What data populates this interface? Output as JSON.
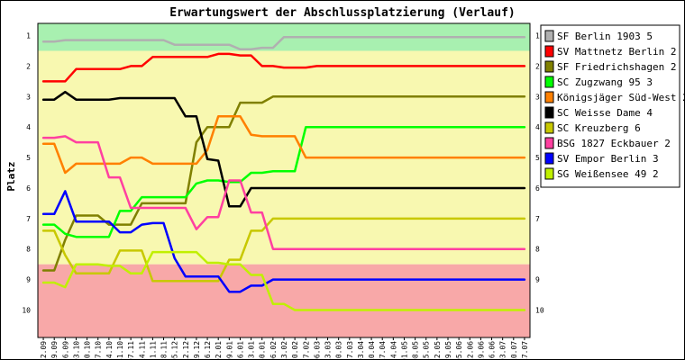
{
  "chart_data": {
    "type": "line",
    "title": "Erwartungswert der Abschlussplatzierung (Verlauf)",
    "ylabel": "Platz",
    "xlabel": "",
    "ylim": [
      0.6,
      10.9
    ],
    "y_inverted": true,
    "yticks": [
      "1",
      "2",
      "3",
      "4",
      "5",
      "6",
      "7",
      "8",
      "9",
      "10"
    ],
    "grid": false,
    "legend_position": "right",
    "zones": [
      {
        "from": 0.6,
        "to": 1.5,
        "color": "#a8f0b0"
      },
      {
        "from": 1.5,
        "to": 8.5,
        "color": "#f8f8b0"
      },
      {
        "from": 8.5,
        "to": 10.9,
        "color": "#f8a8a8"
      }
    ],
    "x": [
      "12.09",
      "19.09",
      "26.09",
      "03.10",
      "10.10",
      "17.10",
      "24.10",
      "31.10",
      "07.11",
      "14.11",
      "21.11",
      "28.11",
      "05.12",
      "12.12",
      "19.12",
      "26.12",
      "02.01",
      "09.01",
      "16.01",
      "23.01",
      "30.01",
      "06.02",
      "13.02",
      "20.02",
      "27.02",
      "06.03",
      "13.03",
      "20.03",
      "27.03",
      "03.04",
      "10.04",
      "17.04",
      "24.04",
      "01.05",
      "08.05",
      "15.05",
      "22.05",
      "29.05",
      "05.06",
      "12.06",
      "19.06",
      "26.06",
      "03.07",
      "10.07",
      "17.07"
    ],
    "series": [
      {
        "name": "SF Berlin 1903 5",
        "color": "#b0b0b0",
        "values": [
          1.2,
          1.2,
          1.15,
          1.15,
          1.15,
          1.15,
          1.15,
          1.15,
          1.15,
          1.15,
          1.15,
          1.15,
          1.3,
          1.3,
          1.3,
          1.3,
          1.3,
          1.3,
          1.45,
          1.45,
          1.4,
          1.4,
          1.05,
          1.05,
          1.05,
          1.05,
          1.05,
          1.05,
          1.05,
          1.05,
          1.05,
          1.05,
          1.05,
          1.05,
          1.05,
          1.05,
          1.05,
          1.05,
          1.05,
          1.05,
          1.05,
          1.05,
          1.05,
          1.05,
          1.05
        ]
      },
      {
        "name": "SV Mattnetz Berlin 2",
        "color": "#ff0000",
        "values": [
          2.5,
          2.5,
          2.5,
          2.1,
          2.1,
          2.1,
          2.1,
          2.1,
          2.0,
          2.0,
          1.7,
          1.7,
          1.7,
          1.7,
          1.7,
          1.7,
          1.6,
          1.6,
          1.65,
          1.65,
          2.0,
          2.0,
          2.05,
          2.05,
          2.05,
          2.0,
          2.0,
          2.0,
          2.0,
          2.0,
          2.0,
          2.0,
          2.0,
          2.0,
          2.0,
          2.0,
          2.0,
          2.0,
          2.0,
          2.0,
          2.0,
          2.0,
          2.0,
          2.0,
          2.0
        ]
      },
      {
        "name": "SF Friedrichshagen 2",
        "color": "#808000",
        "values": [
          8.7,
          8.7,
          7.7,
          6.9,
          6.9,
          6.9,
          7.2,
          7.2,
          7.2,
          6.5,
          6.5,
          6.5,
          6.5,
          6.5,
          4.5,
          4.0,
          4.0,
          4.0,
          3.2,
          3.2,
          3.2,
          3.0,
          3.0,
          3.0,
          3.0,
          3.0,
          3.0,
          3.0,
          3.0,
          3.0,
          3.0,
          3.0,
          3.0,
          3.0,
          3.0,
          3.0,
          3.0,
          3.0,
          3.0,
          3.0,
          3.0,
          3.0,
          3.0,
          3.0,
          3.0
        ]
      },
      {
        "name": "SC Zugzwang 95 3",
        "color": "#00ff00",
        "values": [
          7.2,
          7.2,
          7.5,
          7.6,
          7.6,
          7.6,
          7.6,
          6.75,
          6.75,
          6.3,
          6.3,
          6.3,
          6.3,
          6.3,
          5.85,
          5.75,
          5.75,
          5.8,
          5.8,
          5.5,
          5.5,
          5.45,
          5.45,
          5.45,
          4.0,
          4.0,
          4.0,
          4.0,
          4.0,
          4.0,
          4.0,
          4.0,
          4.0,
          4.0,
          4.0,
          4.0,
          4.0,
          4.0,
          4.0,
          4.0,
          4.0,
          4.0,
          4.0,
          4.0,
          4.0
        ]
      },
      {
        "name": "Königsjäger Süd-West 2",
        "color": "#ff8000",
        "values": [
          4.55,
          4.55,
          5.5,
          5.2,
          5.2,
          5.2,
          5.2,
          5.2,
          5.0,
          5.0,
          5.2,
          5.2,
          5.2,
          5.2,
          5.2,
          4.75,
          3.65,
          3.65,
          3.65,
          4.25,
          4.3,
          4.3,
          4.3,
          4.3,
          5.0,
          5.0,
          5.0,
          5.0,
          5.0,
          5.0,
          5.0,
          5.0,
          5.0,
          5.0,
          5.0,
          5.0,
          5.0,
          5.0,
          5.0,
          5.0,
          5.0,
          5.0,
          5.0,
          5.0,
          5.0
        ]
      },
      {
        "name": "SC Weisse Dame 4",
        "color": "#000000",
        "values": [
          3.1,
          3.1,
          2.85,
          3.1,
          3.1,
          3.1,
          3.1,
          3.05,
          3.05,
          3.05,
          3.05,
          3.05,
          3.05,
          3.65,
          3.65,
          5.05,
          5.1,
          6.6,
          6.6,
          6.0,
          6.0,
          6.0,
          6.0,
          6.0,
          6.0,
          6.0,
          6.0,
          6.0,
          6.0,
          6.0,
          6.0,
          6.0,
          6.0,
          6.0,
          6.0,
          6.0,
          6.0,
          6.0,
          6.0,
          6.0,
          6.0,
          6.0,
          6.0,
          6.0,
          6.0
        ]
      },
      {
        "name": "SC Kreuzberg 6",
        "color": "#c8c800",
        "values": [
          7.4,
          7.4,
          8.2,
          8.8,
          8.8,
          8.8,
          8.8,
          8.05,
          8.05,
          8.05,
          9.05,
          9.05,
          9.05,
          9.05,
          9.05,
          9.05,
          9.05,
          8.35,
          8.35,
          7.4,
          7.4,
          7.0,
          7.0,
          7.0,
          7.0,
          7.0,
          7.0,
          7.0,
          7.0,
          7.0,
          7.0,
          7.0,
          7.0,
          7.0,
          7.0,
          7.0,
          7.0,
          7.0,
          7.0,
          7.0,
          7.0,
          7.0,
          7.0,
          7.0,
          7.0
        ]
      },
      {
        "name": "BSG 1827 Eckbauer 2",
        "color": "#ff40a0",
        "values": [
          4.35,
          4.35,
          4.3,
          4.5,
          4.5,
          4.5,
          5.65,
          5.65,
          6.65,
          6.65,
          6.65,
          6.65,
          6.65,
          6.65,
          7.35,
          6.95,
          6.95,
          5.75,
          5.75,
          6.8,
          6.8,
          8.0,
          8.0,
          8.0,
          8.0,
          8.0,
          8.0,
          8.0,
          8.0,
          8.0,
          8.0,
          8.0,
          8.0,
          8.0,
          8.0,
          8.0,
          8.0,
          8.0,
          8.0,
          8.0,
          8.0,
          8.0,
          8.0,
          8.0,
          8.0
        ]
      },
      {
        "name": "SV Empor Berlin 3",
        "color": "#0000ff",
        "values": [
          6.85,
          6.85,
          6.1,
          7.1,
          7.1,
          7.1,
          7.1,
          7.45,
          7.45,
          7.2,
          7.15,
          7.15,
          8.3,
          8.9,
          8.9,
          8.9,
          8.9,
          9.4,
          9.4,
          9.2,
          9.2,
          9.0,
          9.0,
          9.0,
          9.0,
          9.0,
          9.0,
          9.0,
          9.0,
          9.0,
          9.0,
          9.0,
          9.0,
          9.0,
          9.0,
          9.0,
          9.0,
          9.0,
          9.0,
          9.0,
          9.0,
          9.0,
          9.0,
          9.0,
          9.0
        ]
      },
      {
        "name": "SG Weißensee 49 2",
        "color": "#c0f000",
        "values": [
          9.1,
          9.1,
          9.25,
          8.5,
          8.5,
          8.5,
          8.55,
          8.55,
          8.8,
          8.8,
          8.1,
          8.1,
          8.1,
          8.1,
          8.1,
          8.45,
          8.45,
          8.5,
          8.5,
          8.85,
          8.85,
          9.8,
          9.8,
          10.0,
          10.0,
          10.0,
          10.0,
          10.0,
          10.0,
          10.0,
          10.0,
          10.0,
          10.0,
          10.0,
          10.0,
          10.0,
          10.0,
          10.0,
          10.0,
          10.0,
          10.0,
          10.0,
          10.0,
          10.0,
          10.0
        ]
      }
    ]
  }
}
